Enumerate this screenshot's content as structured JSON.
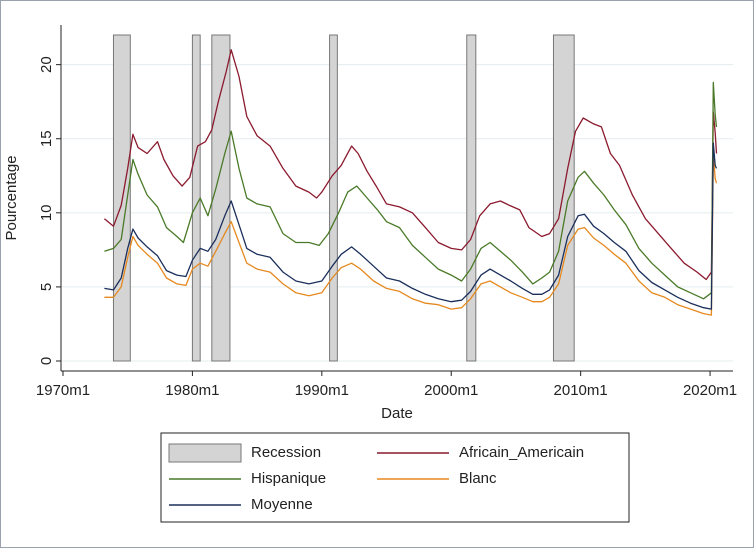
{
  "chart_data": {
    "type": "line",
    "title": "",
    "xlabel": "Date",
    "ylabel": "Pourcentage",
    "xlim": [
      1970,
      2021
    ],
    "ylim": [
      0,
      22
    ],
    "x_ticks": [
      {
        "value": 1970,
        "label": "1970m1"
      },
      {
        "value": 1980,
        "label": "1980m1"
      },
      {
        "value": 1990,
        "label": "1990m1"
      },
      {
        "value": 2000,
        "label": "2000m1"
      },
      {
        "value": 2010,
        "label": "2010m1"
      },
      {
        "value": 2020,
        "label": "2020m1"
      }
    ],
    "y_ticks": [
      0,
      5,
      10,
      15,
      20
    ],
    "grid": "horizontal",
    "legend_position": "bottom",
    "recessions": {
      "name": "Recession",
      "color": "#d4d4d4",
      "edge_color": "#777777",
      "height": 22,
      "periods": [
        [
          1973.9,
          1975.2
        ],
        [
          1980.0,
          1980.6
        ],
        [
          1981.5,
          1982.9
        ],
        [
          1990.6,
          1991.2
        ],
        [
          2001.2,
          2001.9
        ],
        [
          2007.9,
          2009.5
        ]
      ]
    },
    "series": [
      {
        "name": "Africain_Americain",
        "color": "#8b1a2e",
        "points": [
          [
            1973.2,
            9.6
          ],
          [
            1973.9,
            9.1
          ],
          [
            1974.5,
            10.5
          ],
          [
            1975.0,
            13.0
          ],
          [
            1975.4,
            15.3
          ],
          [
            1975.8,
            14.4
          ],
          [
            1976.5,
            14.0
          ],
          [
            1977.3,
            14.8
          ],
          [
            1977.8,
            13.6
          ],
          [
            1978.5,
            12.5
          ],
          [
            1979.2,
            11.8
          ],
          [
            1979.8,
            12.4
          ],
          [
            1980.4,
            14.5
          ],
          [
            1981.0,
            14.8
          ],
          [
            1981.5,
            15.6
          ],
          [
            1982.0,
            17.5
          ],
          [
            1982.6,
            19.5
          ],
          [
            1983.0,
            21.0
          ],
          [
            1983.6,
            19.2
          ],
          [
            1984.2,
            16.5
          ],
          [
            1985.0,
            15.2
          ],
          [
            1986.0,
            14.5
          ],
          [
            1987.0,
            13.0
          ],
          [
            1988.0,
            11.8
          ],
          [
            1989.0,
            11.4
          ],
          [
            1989.6,
            11.0
          ],
          [
            1990.0,
            11.4
          ],
          [
            1990.8,
            12.5
          ],
          [
            1991.5,
            13.2
          ],
          [
            1992.3,
            14.5
          ],
          [
            1992.8,
            14.0
          ],
          [
            1993.5,
            12.8
          ],
          [
            1994.2,
            11.8
          ],
          [
            1995.0,
            10.6
          ],
          [
            1996.0,
            10.4
          ],
          [
            1997.0,
            10.0
          ],
          [
            1998.0,
            9.0
          ],
          [
            1999.0,
            8.0
          ],
          [
            2000.0,
            7.6
          ],
          [
            2000.8,
            7.5
          ],
          [
            2001.5,
            8.2
          ],
          [
            2002.2,
            9.8
          ],
          [
            2003.0,
            10.6
          ],
          [
            2003.8,
            10.8
          ],
          [
            2004.5,
            10.5
          ],
          [
            2005.3,
            10.2
          ],
          [
            2006.0,
            9.0
          ],
          [
            2007.0,
            8.4
          ],
          [
            2007.6,
            8.6
          ],
          [
            2008.3,
            9.6
          ],
          [
            2009.0,
            13.0
          ],
          [
            2009.6,
            15.5
          ],
          [
            2010.2,
            16.4
          ],
          [
            2011.0,
            16.0
          ],
          [
            2011.6,
            15.8
          ],
          [
            2012.3,
            14.0
          ],
          [
            2013.0,
            13.2
          ],
          [
            2014.0,
            11.2
          ],
          [
            2015.0,
            9.6
          ],
          [
            2016.0,
            8.6
          ],
          [
            2017.0,
            7.6
          ],
          [
            2018.0,
            6.6
          ],
          [
            2019.0,
            6.0
          ],
          [
            2019.7,
            5.5
          ],
          [
            2020.1,
            6.0
          ],
          [
            2020.25,
            16.8
          ],
          [
            2020.4,
            15.4
          ],
          [
            2020.5,
            14.0
          ]
        ]
      },
      {
        "name": "Hispanique",
        "color": "#4a7a28",
        "points": [
          [
            1973.2,
            7.4
          ],
          [
            1973.9,
            7.6
          ],
          [
            1974.5,
            8.2
          ],
          [
            1975.0,
            11.2
          ],
          [
            1975.4,
            13.6
          ],
          [
            1975.8,
            12.6
          ],
          [
            1976.5,
            11.2
          ],
          [
            1977.3,
            10.4
          ],
          [
            1978.0,
            9.0
          ],
          [
            1978.8,
            8.4
          ],
          [
            1979.3,
            8.0
          ],
          [
            1980.0,
            10.0
          ],
          [
            1980.6,
            11.0
          ],
          [
            1981.2,
            9.8
          ],
          [
            1981.8,
            11.6
          ],
          [
            1982.5,
            14.0
          ],
          [
            1983.0,
            15.5
          ],
          [
            1983.6,
            13.0
          ],
          [
            1984.2,
            11.0
          ],
          [
            1985.0,
            10.6
          ],
          [
            1986.0,
            10.4
          ],
          [
            1987.0,
            8.6
          ],
          [
            1988.0,
            8.0
          ],
          [
            1989.0,
            8.0
          ],
          [
            1989.8,
            7.8
          ],
          [
            1990.5,
            8.6
          ],
          [
            1991.3,
            10.0
          ],
          [
            1992.0,
            11.4
          ],
          [
            1992.7,
            11.8
          ],
          [
            1993.5,
            11.0
          ],
          [
            1994.3,
            10.2
          ],
          [
            1995.0,
            9.4
          ],
          [
            1996.0,
            9.0
          ],
          [
            1997.0,
            7.8
          ],
          [
            1998.0,
            7.0
          ],
          [
            1999.0,
            6.2
          ],
          [
            2000.0,
            5.8
          ],
          [
            2000.8,
            5.4
          ],
          [
            2001.5,
            6.2
          ],
          [
            2002.3,
            7.6
          ],
          [
            2003.0,
            8.0
          ],
          [
            2003.8,
            7.4
          ],
          [
            2004.6,
            6.8
          ],
          [
            2005.5,
            6.0
          ],
          [
            2006.3,
            5.2
          ],
          [
            2007.0,
            5.6
          ],
          [
            2007.6,
            6.0
          ],
          [
            2008.3,
            7.4
          ],
          [
            2009.0,
            10.8
          ],
          [
            2009.8,
            12.4
          ],
          [
            2010.3,
            12.8
          ],
          [
            2011.0,
            12.0
          ],
          [
            2011.8,
            11.2
          ],
          [
            2012.6,
            10.2
          ],
          [
            2013.5,
            9.2
          ],
          [
            2014.5,
            7.6
          ],
          [
            2015.5,
            6.6
          ],
          [
            2016.5,
            5.8
          ],
          [
            2017.5,
            5.0
          ],
          [
            2018.5,
            4.6
          ],
          [
            2019.5,
            4.2
          ],
          [
            2020.1,
            4.6
          ],
          [
            2020.25,
            18.8
          ],
          [
            2020.4,
            16.6
          ],
          [
            2020.5,
            15.8
          ]
        ]
      },
      {
        "name": "Blanc",
        "color": "#e5891f",
        "points": [
          [
            1973.2,
            4.3
          ],
          [
            1973.9,
            4.3
          ],
          [
            1974.5,
            5.0
          ],
          [
            1975.0,
            7.0
          ],
          [
            1975.4,
            8.4
          ],
          [
            1975.8,
            7.8
          ],
          [
            1976.5,
            7.2
          ],
          [
            1977.3,
            6.6
          ],
          [
            1978.0,
            5.6
          ],
          [
            1978.8,
            5.2
          ],
          [
            1979.5,
            5.1
          ],
          [
            1980.0,
            6.2
          ],
          [
            1980.6,
            6.6
          ],
          [
            1981.2,
            6.4
          ],
          [
            1981.8,
            7.4
          ],
          [
            1982.5,
            8.6
          ],
          [
            1983.0,
            9.4
          ],
          [
            1983.6,
            8.0
          ],
          [
            1984.2,
            6.6
          ],
          [
            1985.0,
            6.2
          ],
          [
            1986.0,
            6.0
          ],
          [
            1987.0,
            5.2
          ],
          [
            1988.0,
            4.6
          ],
          [
            1989.0,
            4.4
          ],
          [
            1990.0,
            4.6
          ],
          [
            1990.8,
            5.6
          ],
          [
            1991.5,
            6.3
          ],
          [
            1992.3,
            6.6
          ],
          [
            1993.0,
            6.2
          ],
          [
            1994.0,
            5.4
          ],
          [
            1995.0,
            4.9
          ],
          [
            1996.0,
            4.7
          ],
          [
            1997.0,
            4.2
          ],
          [
            1998.0,
            3.9
          ],
          [
            1999.0,
            3.8
          ],
          [
            2000.0,
            3.5
          ],
          [
            2000.8,
            3.6
          ],
          [
            2001.5,
            4.2
          ],
          [
            2002.3,
            5.2
          ],
          [
            2003.0,
            5.4
          ],
          [
            2003.8,
            5.0
          ],
          [
            2004.6,
            4.6
          ],
          [
            2005.5,
            4.3
          ],
          [
            2006.3,
            4.0
          ],
          [
            2007.0,
            4.0
          ],
          [
            2007.6,
            4.3
          ],
          [
            2008.3,
            5.2
          ],
          [
            2009.0,
            7.8
          ],
          [
            2009.8,
            8.9
          ],
          [
            2010.3,
            9.0
          ],
          [
            2011.0,
            8.3
          ],
          [
            2011.8,
            7.8
          ],
          [
            2012.6,
            7.2
          ],
          [
            2013.5,
            6.6
          ],
          [
            2014.5,
            5.4
          ],
          [
            2015.5,
            4.6
          ],
          [
            2016.5,
            4.3
          ],
          [
            2017.5,
            3.8
          ],
          [
            2018.5,
            3.5
          ],
          [
            2019.5,
            3.2
          ],
          [
            2020.1,
            3.1
          ],
          [
            2020.25,
            14.0
          ],
          [
            2020.4,
            12.3
          ],
          [
            2020.5,
            12.0
          ]
        ]
      },
      {
        "name": "Moyenne",
        "color": "#1b2f5c",
        "points": [
          [
            1973.2,
            4.9
          ],
          [
            1973.9,
            4.8
          ],
          [
            1974.5,
            5.6
          ],
          [
            1975.0,
            7.6
          ],
          [
            1975.4,
            8.9
          ],
          [
            1975.8,
            8.3
          ],
          [
            1976.5,
            7.7
          ],
          [
            1977.3,
            7.1
          ],
          [
            1978.0,
            6.1
          ],
          [
            1978.8,
            5.8
          ],
          [
            1979.5,
            5.7
          ],
          [
            1980.0,
            6.8
          ],
          [
            1980.6,
            7.6
          ],
          [
            1981.2,
            7.4
          ],
          [
            1981.8,
            8.2
          ],
          [
            1982.5,
            9.8
          ],
          [
            1983.0,
            10.8
          ],
          [
            1983.6,
            9.2
          ],
          [
            1984.2,
            7.6
          ],
          [
            1985.0,
            7.2
          ],
          [
            1986.0,
            7.0
          ],
          [
            1987.0,
            6.0
          ],
          [
            1988.0,
            5.4
          ],
          [
            1989.0,
            5.2
          ],
          [
            1990.0,
            5.4
          ],
          [
            1990.8,
            6.4
          ],
          [
            1991.5,
            7.2
          ],
          [
            1992.3,
            7.7
          ],
          [
            1993.0,
            7.2
          ],
          [
            1994.0,
            6.4
          ],
          [
            1995.0,
            5.6
          ],
          [
            1996.0,
            5.4
          ],
          [
            1997.0,
            4.9
          ],
          [
            1998.0,
            4.5
          ],
          [
            1999.0,
            4.2
          ],
          [
            2000.0,
            4.0
          ],
          [
            2000.8,
            4.1
          ],
          [
            2001.5,
            4.7
          ],
          [
            2002.3,
            5.8
          ],
          [
            2003.0,
            6.2
          ],
          [
            2003.8,
            5.8
          ],
          [
            2004.6,
            5.4
          ],
          [
            2005.5,
            4.9
          ],
          [
            2006.3,
            4.5
          ],
          [
            2007.0,
            4.5
          ],
          [
            2007.6,
            4.8
          ],
          [
            2008.3,
            5.8
          ],
          [
            2009.0,
            8.4
          ],
          [
            2009.8,
            9.8
          ],
          [
            2010.3,
            9.9
          ],
          [
            2011.0,
            9.1
          ],
          [
            2011.8,
            8.6
          ],
          [
            2012.6,
            8.0
          ],
          [
            2013.5,
            7.4
          ],
          [
            2014.5,
            6.1
          ],
          [
            2015.5,
            5.3
          ],
          [
            2016.5,
            4.8
          ],
          [
            2017.5,
            4.3
          ],
          [
            2018.5,
            3.9
          ],
          [
            2019.5,
            3.6
          ],
          [
            2020.1,
            3.5
          ],
          [
            2020.25,
            14.7
          ],
          [
            2020.4,
            13.2
          ],
          [
            2020.5,
            13.0
          ]
        ]
      }
    ],
    "legend": [
      {
        "label": "Recession",
        "kind": "box",
        "ref": "recessions"
      },
      {
        "label": "Africain_Americain",
        "kind": "line",
        "ref": "Africain_Americain"
      },
      {
        "label": "Hispanique",
        "kind": "line",
        "ref": "Hispanique"
      },
      {
        "label": "Blanc",
        "kind": "line",
        "ref": "Blanc"
      },
      {
        "label": "Moyenne",
        "kind": "line",
        "ref": "Moyenne"
      }
    ]
  }
}
